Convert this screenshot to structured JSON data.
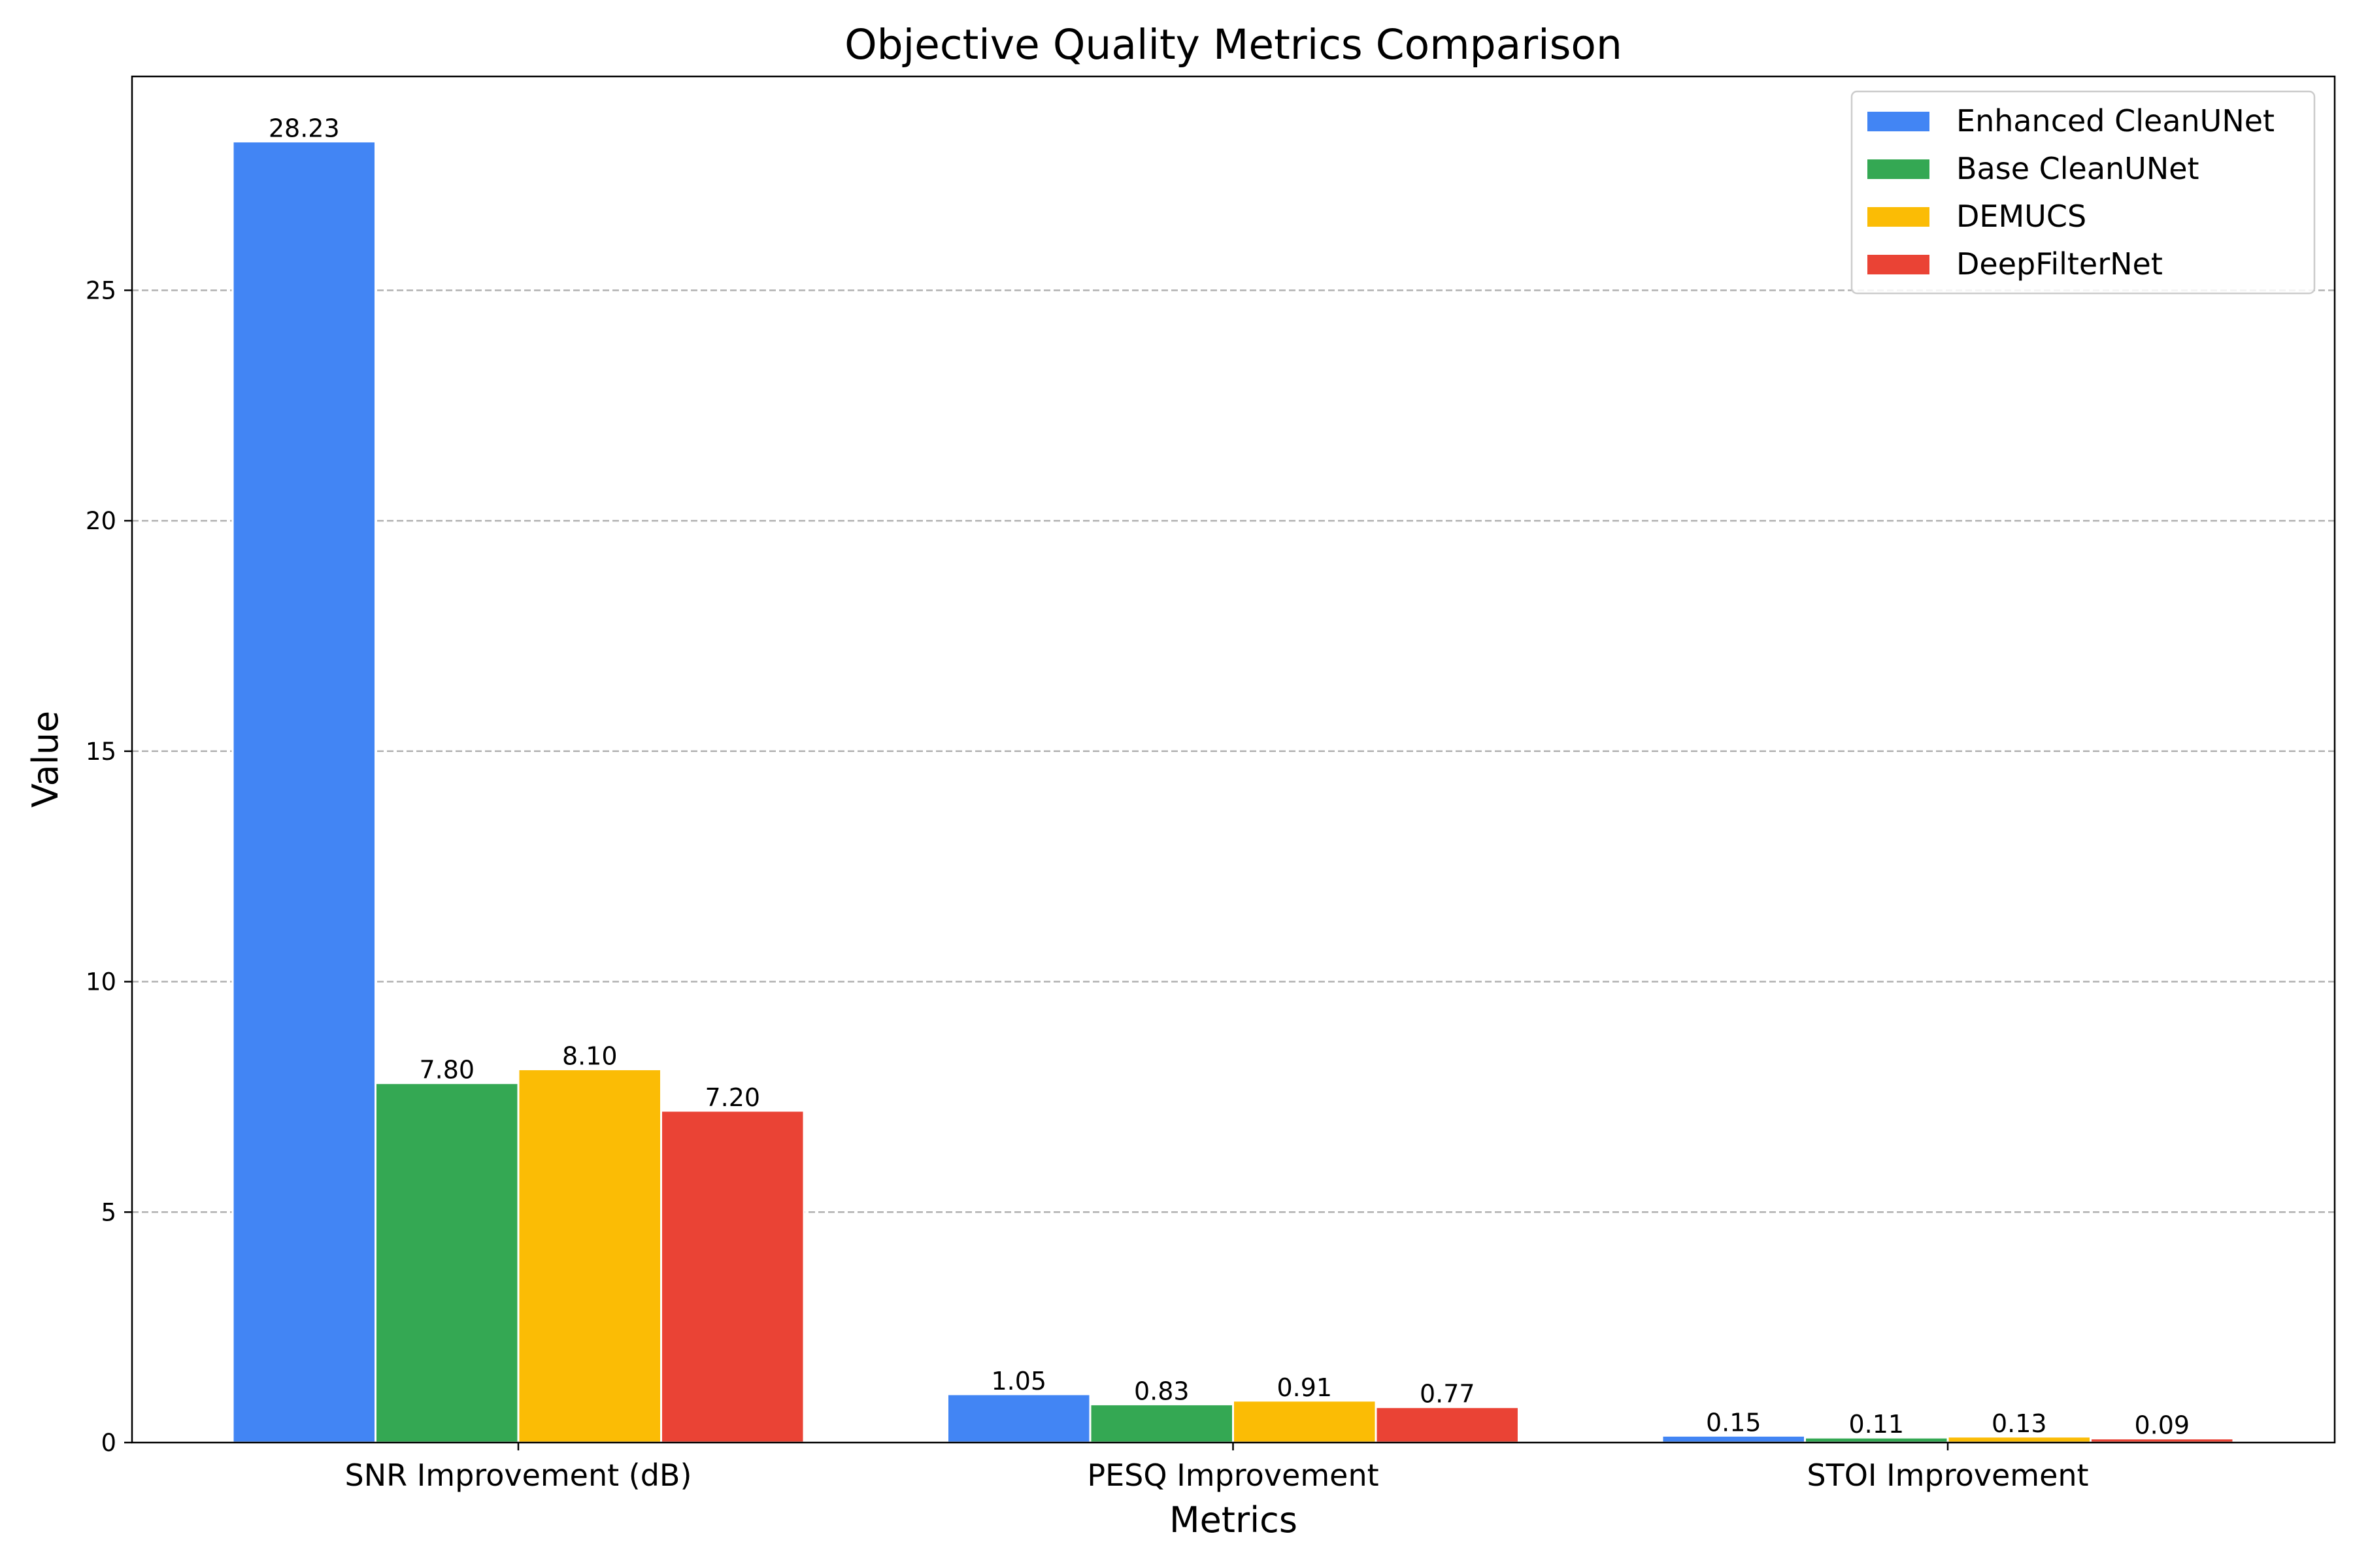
{
  "chart_data": {
    "type": "bar",
    "title": "Objective Quality Metrics Comparison",
    "xlabel": "Metrics",
    "ylabel": "Value",
    "categories": [
      "SNR Improvement (dB)",
      "PESQ Improvement",
      "STOI Improvement"
    ],
    "series": [
      {
        "name": "Enhanced CleanUNet",
        "color": "#4285F4",
        "values": [
          28.23,
          1.05,
          0.15
        ],
        "labels": [
          "28.23",
          "1.05",
          "0.15"
        ]
      },
      {
        "name": "Base CleanUNet",
        "color": "#34A853",
        "values": [
          7.8,
          0.83,
          0.11
        ],
        "labels": [
          "7.80",
          "0.83",
          "0.11"
        ]
      },
      {
        "name": "DEMUCS",
        "color": "#FBBC05",
        "values": [
          8.1,
          0.91,
          0.13
        ],
        "labels": [
          "8.10",
          "0.91",
          "0.13"
        ]
      },
      {
        "name": "DeepFilterNet",
        "color": "#EA4335",
        "values": [
          7.2,
          0.77,
          0.09
        ],
        "labels": [
          "7.20",
          "0.77",
          "0.09"
        ]
      }
    ],
    "ylim": [
      0,
      29.64
    ],
    "yticks": [
      0,
      5,
      10,
      15,
      20,
      25
    ],
    "grid": "y-dashed",
    "legend_position": "top-right"
  }
}
